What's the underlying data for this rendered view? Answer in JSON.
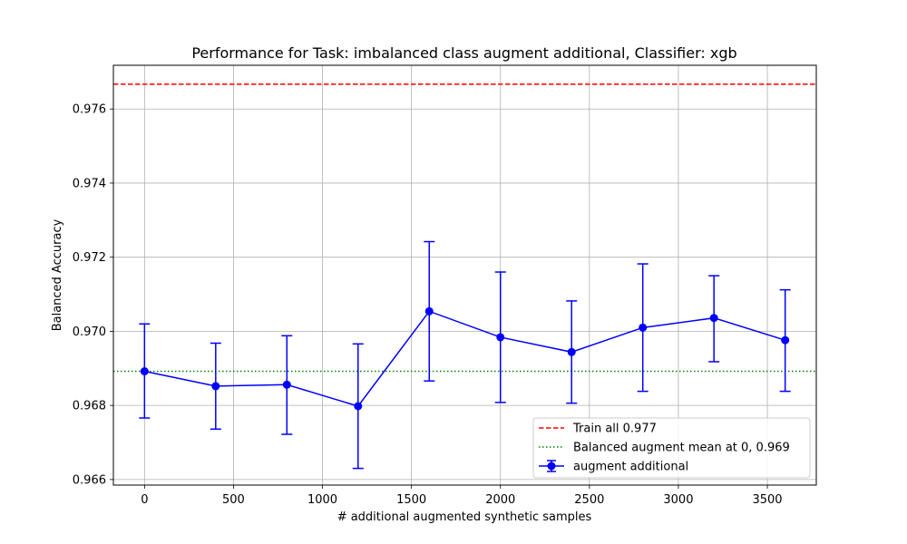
{
  "chart_data": {
    "type": "line",
    "title": "Performance for Task: imbalanced class augment additional, Classifier: xgb",
    "xlabel": "# additional augmented synthetic samples",
    "ylabel": "Balanced Accuracy",
    "xlim": [
      -175,
      3775
    ],
    "ylim": [
      0.96585,
      0.97718
    ],
    "xticks": [
      0,
      500,
      1000,
      1500,
      2000,
      2500,
      3000,
      3500
    ],
    "yticks": [
      0.966,
      0.968,
      0.97,
      0.972,
      0.974,
      0.976
    ],
    "xtick_labels": [
      "0",
      "500",
      "1000",
      "1500",
      "2000",
      "2500",
      "3000",
      "3500"
    ],
    "ytick_labels": [
      "0.966",
      "0.968",
      "0.970",
      "0.972",
      "0.974",
      "0.976"
    ],
    "grid": true,
    "legend_position": "lower-right",
    "series": [
      {
        "name": "augment additional",
        "color": "#0000ff",
        "x": [
          0,
          400,
          800,
          1200,
          1600,
          2000,
          2400,
          2800,
          3200,
          3600
        ],
        "y": [
          0.96892,
          0.96852,
          0.96856,
          0.96798,
          0.97054,
          0.96984,
          0.96944,
          0.9701,
          0.97036,
          0.96976
        ],
        "err_low": [
          0.96766,
          0.96736,
          0.96722,
          0.9663,
          0.96866,
          0.96808,
          0.96806,
          0.96838,
          0.96918,
          0.96838
        ],
        "err_high": [
          0.9702,
          0.96968,
          0.96988,
          0.96966,
          0.97242,
          0.9716,
          0.97082,
          0.97182,
          0.9715,
          0.97112
        ]
      }
    ],
    "reference_lines": [
      {
        "name": "Train all  0.977",
        "y": 0.97667,
        "color": "#ff0000",
        "style": "dashed"
      },
      {
        "name": "Balanced augment mean at 0, 0.969",
        "y": 0.96892,
        "color": "#008000",
        "style": "dotted"
      }
    ]
  }
}
